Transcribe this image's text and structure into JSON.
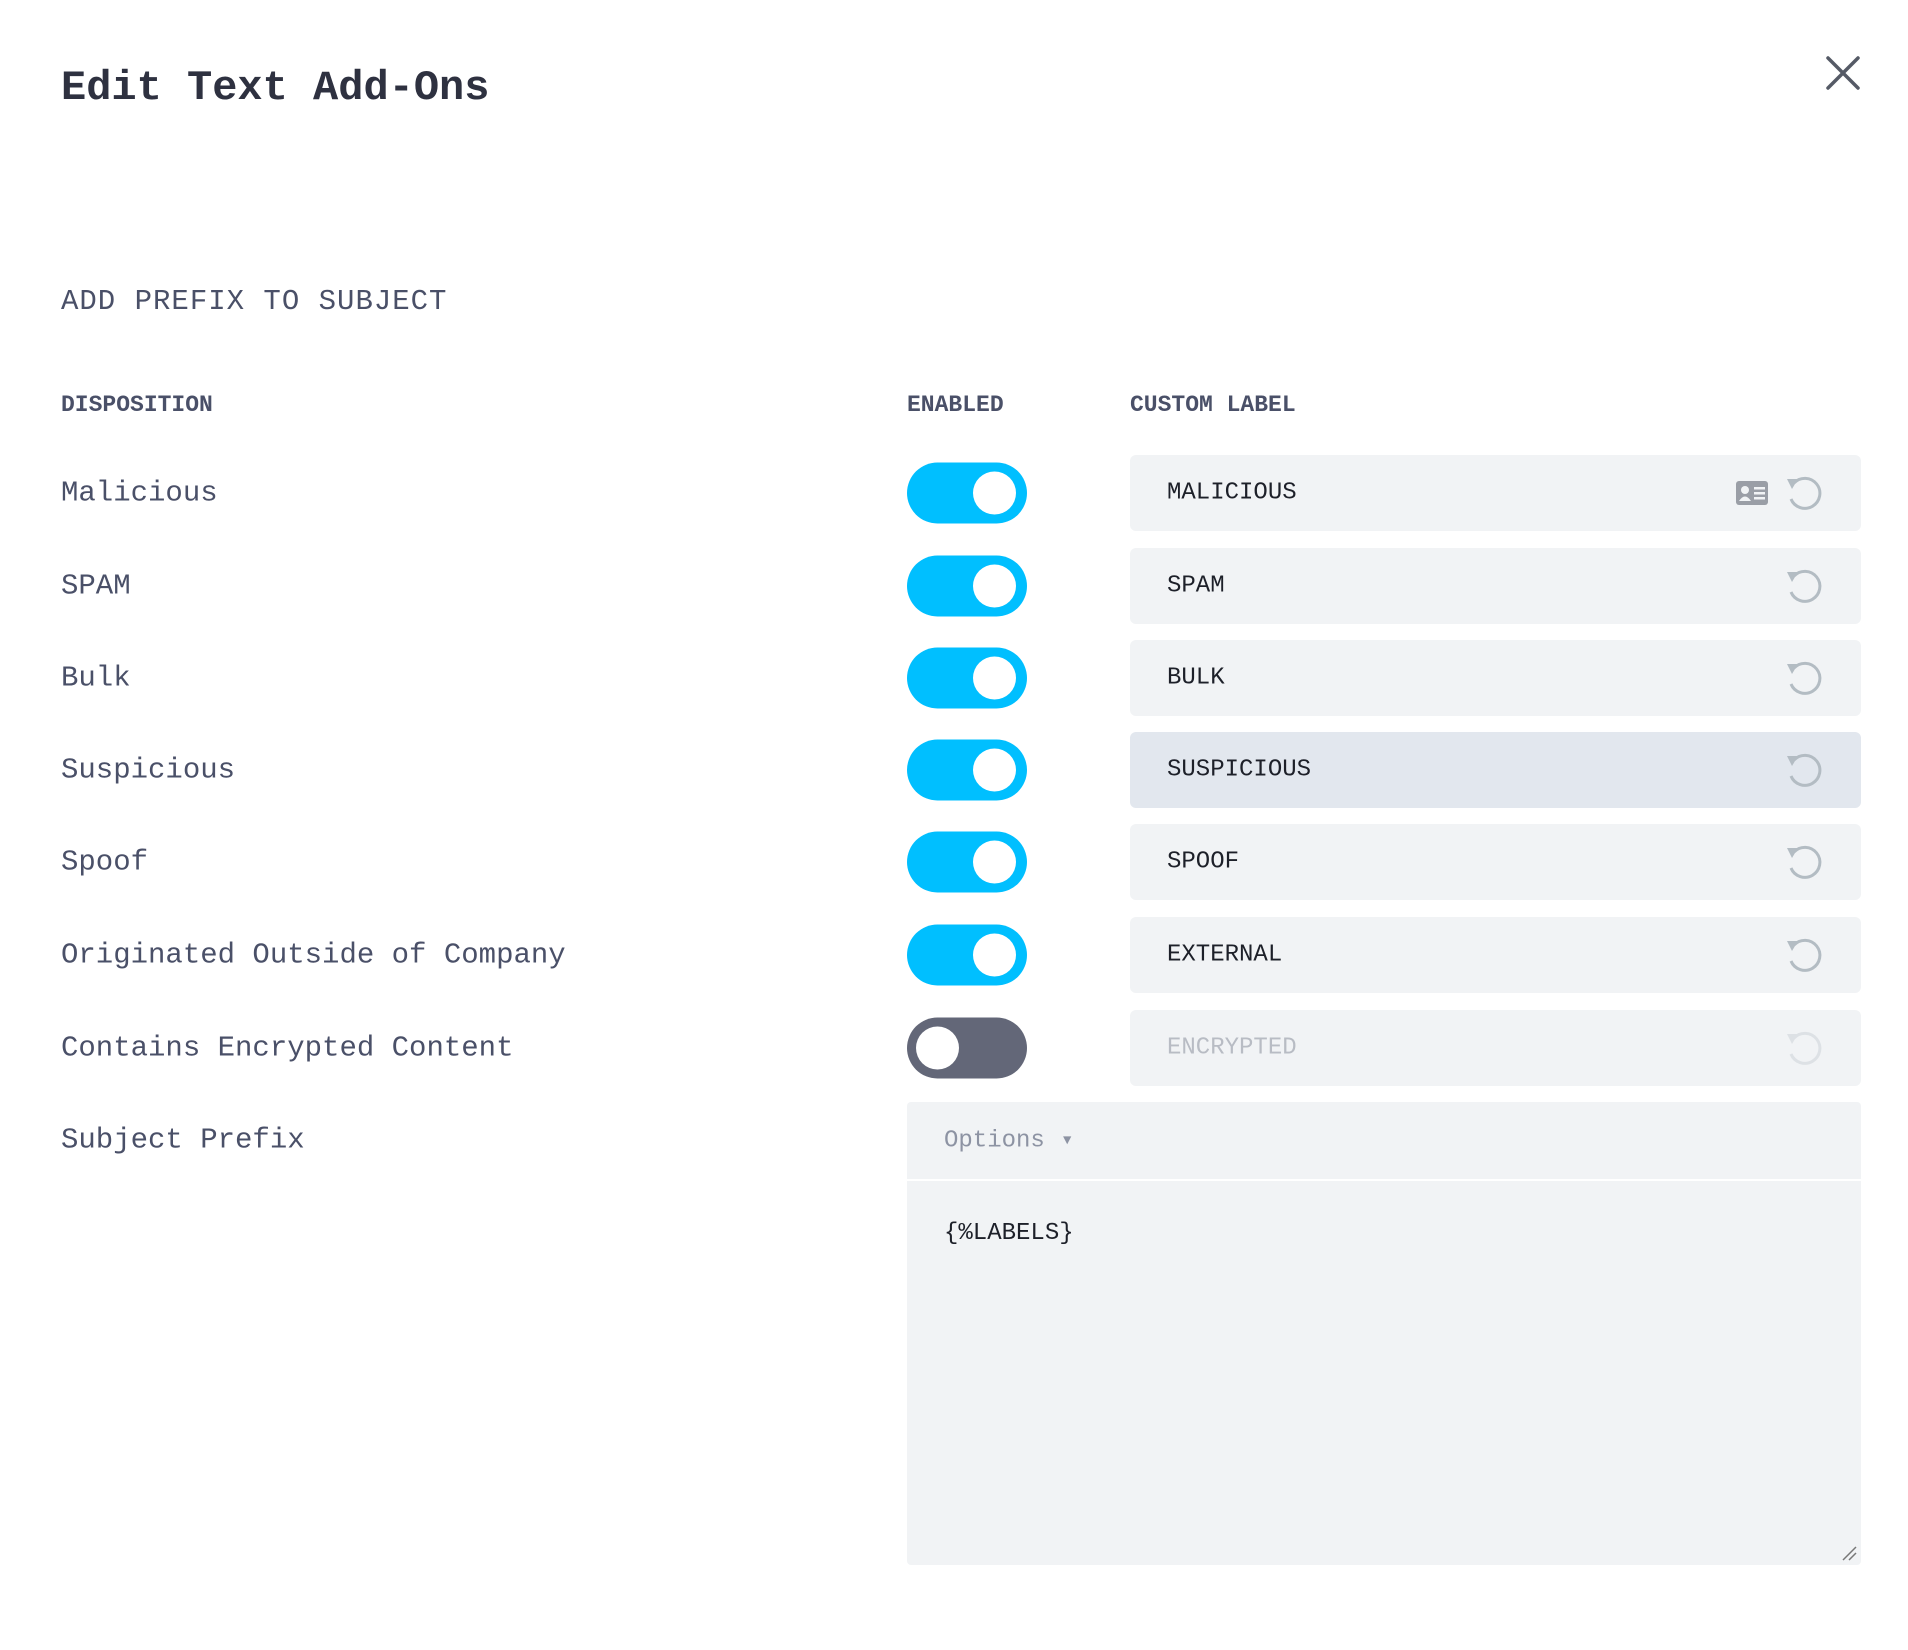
{
  "dialog": {
    "title": "Edit Text Add-Ons",
    "close_icon": "close-icon"
  },
  "section_title": "ADD PREFIX TO SUBJECT",
  "columns": {
    "disposition": "DISPOSITION",
    "enabled": "ENABLED",
    "custom_label": "CUSTOM LABEL"
  },
  "rows": [
    {
      "disposition": "Malicious",
      "enabled": true,
      "label": "MALICIOUS",
      "has_card_icon": true
    },
    {
      "disposition": "SPAM",
      "enabled": true,
      "label": "SPAM"
    },
    {
      "disposition": "Bulk",
      "enabled": true,
      "label": "BULK"
    },
    {
      "disposition": "Suspicious",
      "enabled": true,
      "label": "SUSPICIOUS"
    },
    {
      "disposition": "Spoof",
      "enabled": true,
      "label": "SPOOF"
    },
    {
      "disposition": "Originated Outside of Company",
      "enabled": true,
      "label": "EXTERNAL"
    },
    {
      "disposition": "Contains Encrypted Content",
      "enabled": false,
      "label": "ENCRYPTED"
    }
  ],
  "subject_prefix": {
    "label": "Subject Prefix",
    "options_label": "Options",
    "caret": "▼",
    "value": "{%LABELS}"
  },
  "colors": {
    "toggle_on": "#00bfff",
    "toggle_off": "#636778"
  }
}
